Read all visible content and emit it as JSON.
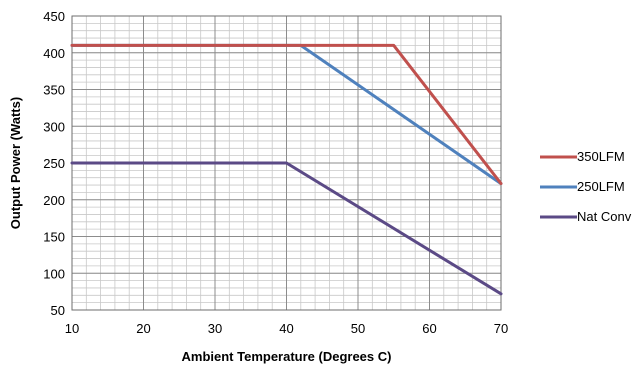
{
  "chart_data": {
    "type": "line",
    "title": "",
    "xlabel": "Ambient Temperature (Degrees C)",
    "ylabel": "Output Power (Watts)",
    "xlim": [
      10,
      70
    ],
    "ylim": [
      50,
      450
    ],
    "x_ticks": [
      10,
      20,
      30,
      40,
      50,
      60,
      70
    ],
    "y_ticks": [
      50,
      100,
      150,
      200,
      250,
      300,
      350,
      400,
      450
    ],
    "grid": true,
    "legend_position": "right",
    "series": [
      {
        "name": "350LFM",
        "color": "#c0504d",
        "x": [
          10,
          55,
          70
        ],
        "y": [
          410,
          410,
          222
        ]
      },
      {
        "name": "250LFM",
        "color": "#4f81bd",
        "x": [
          10,
          42,
          70
        ],
        "y": [
          410,
          410,
          222
        ]
      },
      {
        "name": "Nat Conv",
        "color": "#5b4a86",
        "x": [
          10,
          40,
          70
        ],
        "y": [
          250,
          250,
          72
        ]
      }
    ]
  }
}
